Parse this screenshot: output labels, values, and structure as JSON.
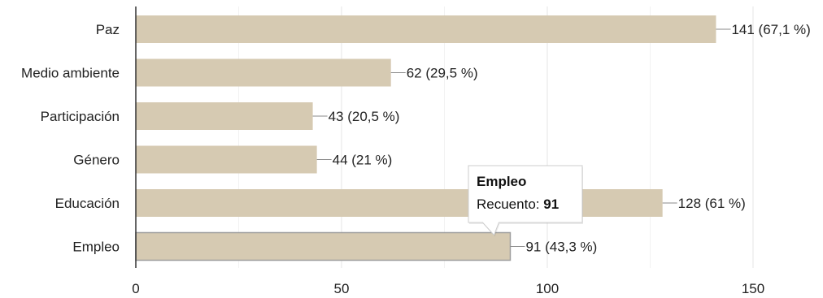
{
  "chart_data": {
    "type": "bar",
    "orientation": "horizontal",
    "categories": [
      "Paz",
      "Medio ambiente",
      "Participación",
      "Género",
      "Educación",
      "Empleo"
    ],
    "values": [
      141,
      62,
      43,
      44,
      128,
      91
    ],
    "data_labels": [
      "141 (67,1 %)",
      "62 (29,5 %)",
      "43 (20,5 %)",
      "44 (21 %)",
      "128 (61 %)",
      "91 (43,3 %)"
    ],
    "xlim": [
      0,
      150
    ],
    "x_ticks": [
      0,
      50,
      100,
      150
    ],
    "grid": true,
    "bar_color": "#d6cab2",
    "highlight_index": 5,
    "tooltip": {
      "title": "Empleo",
      "label": "Recuento:",
      "value": "91"
    }
  }
}
